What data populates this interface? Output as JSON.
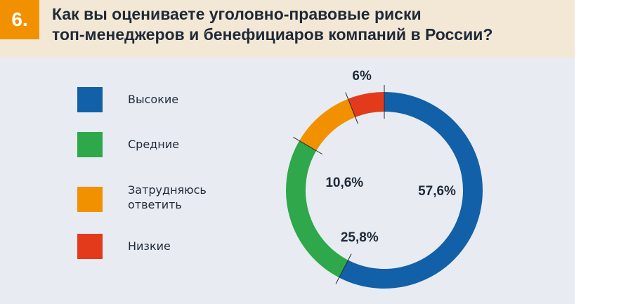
{
  "header": {
    "number": "6.",
    "title_line1": "Как вы оцениваете уголовно-правовые риски",
    "title_line2": "топ-менеджеров и бенефициаров компаний в России?"
  },
  "legend": [
    {
      "label": "Высокие",
      "color": "#1260a8"
    },
    {
      "label": "Средние",
      "color": "#2ea84a"
    },
    {
      "label": "Затрудняюсь ответить",
      "color": "#f29100"
    },
    {
      "label": "Низкие",
      "color": "#e43a1c"
    }
  ],
  "chart_data": {
    "type": "pie",
    "style": "donut",
    "title": "Как вы оцениваете уголовно-правовые риски топ-менеджеров и бенефициаров компаний в России?",
    "categories": [
      "Высокие",
      "Средние",
      "Затрудняюсь ответить",
      "Низкие"
    ],
    "values": [
      57.6,
      25.8,
      10.6,
      6
    ],
    "labels": [
      "57,6%",
      "25,8%",
      "10,6%",
      "6%"
    ],
    "colors": [
      "#1260a8",
      "#2ea84a",
      "#f29100",
      "#e43a1c"
    ]
  }
}
